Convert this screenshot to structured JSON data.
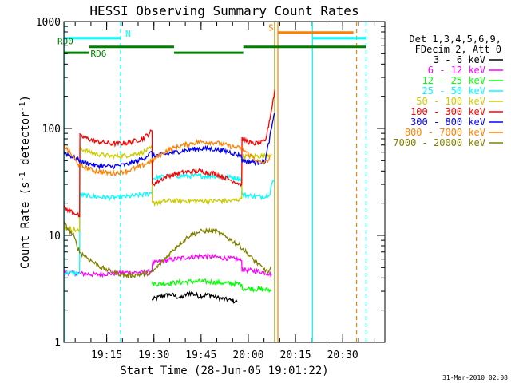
{
  "chart_data": {
    "type": "line",
    "title": "HESSI Observing Summary Count Rates",
    "xlabel": "Start Time (28-Jun-05 19:01:22)",
    "ylabel_main": "Count Rate (s",
    "ylabel_sup1": "-1",
    "ylabel_mid": " detector",
    "ylabel_sup2": "-1",
    "ylabel_end": ")",
    "y_scale": "log",
    "ylim": [
      1,
      1000
    ],
    "xlim_minutes": [
      0,
      102
    ],
    "x_ticks": [
      {
        "m": 13.6,
        "label": "19:15"
      },
      {
        "m": 28.6,
        "label": "19:30"
      },
      {
        "m": 43.6,
        "label": "19:45"
      },
      {
        "m": 58.6,
        "label": "20:00"
      },
      {
        "m": 73.6,
        "label": "20:15"
      },
      {
        "m": 88.6,
        "label": "20:30"
      }
    ],
    "y_ticks": [
      {
        "v": 1,
        "label": "1"
      },
      {
        "v": 10,
        "label": "10"
      },
      {
        "v": 100,
        "label": "100"
      },
      {
        "v": 1000,
        "label": "1000"
      }
    ],
    "legend_header": [
      "Det 1,3,4,5,6,9,",
      "FDecim 2, Att 0"
    ],
    "series": [
      {
        "name": "3 - 6 keV",
        "color": "#000000",
        "x": [
          28,
          31,
          34,
          37,
          40,
          43,
          46,
          49,
          52,
          55
        ],
        "y": [
          2.5,
          2.7,
          2.8,
          2.6,
          2.9,
          2.7,
          2.8,
          2.6,
          2.5,
          2.4
        ]
      },
      {
        "name": "6 - 12 keV",
        "color": "#ff00ff",
        "x": [
          0,
          5,
          10,
          15,
          20,
          25,
          28,
          28.1,
          35,
          40,
          45,
          50,
          55,
          56.5,
          56.6,
          62,
          65,
          66
        ],
        "y": [
          4.5,
          4.4,
          4.3,
          4.4,
          4.5,
          4.5,
          4.6,
          5.5,
          6.0,
          6.3,
          6.4,
          6.2,
          6.0,
          5.8,
          4.8,
          4.6,
          4.4,
          4.3
        ]
      },
      {
        "name": "12 - 25 keV",
        "color": "#00ff00",
        "x": [
          28,
          35,
          40,
          45,
          50,
          56.5,
          56.6,
          65,
          66
        ],
        "y": [
          3.5,
          3.6,
          3.7,
          3.7,
          3.6,
          3.5,
          3.2,
          3.1,
          3.0
        ]
      },
      {
        "name": "25 - 50 keV",
        "color": "#00ffff",
        "x": [
          0,
          5,
          5.1,
          10,
          15,
          20,
          25,
          28,
          28.1,
          33,
          38,
          43,
          48,
          53,
          56.5,
          56.6,
          62,
          64,
          65.5,
          66,
          67
        ],
        "y": [
          4.5,
          4.4,
          24,
          23,
          22.5,
          23,
          24,
          25,
          34,
          36,
          36,
          36,
          36,
          35,
          34,
          24,
          23,
          23,
          25,
          30,
          33
        ]
      },
      {
        "name": "50 - 100 keV",
        "color": "#cccc00",
        "x": [
          0,
          5,
          5.1,
          10,
          15,
          20,
          25,
          28,
          28.1,
          33,
          38,
          43,
          48,
          53,
          56.5,
          56.6,
          62,
          64,
          66
        ],
        "y": [
          12,
          11,
          65,
          58,
          55,
          56,
          60,
          66,
          20,
          21,
          21,
          21,
          21,
          21,
          22,
          55,
          55,
          56,
          58
        ]
      },
      {
        "name": "100 - 300 keV",
        "color": "#ff0000",
        "x": [
          0,
          4,
          5,
          5.1,
          10,
          15,
          20,
          25,
          28,
          28.1,
          33,
          38,
          43,
          48,
          53,
          56.5,
          56.6,
          60,
          64,
          66,
          67
        ],
        "y": [
          18,
          16,
          15,
          85,
          76,
          72,
          73,
          80,
          95,
          30,
          36,
          39,
          40,
          38,
          33,
          30,
          80,
          72,
          75,
          150,
          230
        ]
      },
      {
        "name": "300 - 800 keV",
        "color": "#0000ff",
        "x": [
          0,
          5,
          10,
          15,
          20,
          25,
          28,
          28.1,
          33,
          38,
          43,
          48,
          53,
          56.5,
          56.6,
          62,
          64,
          66,
          67
        ],
        "y": [
          60,
          50,
          45,
          44,
          46,
          52,
          60,
          55,
          58,
          62,
          65,
          64,
          60,
          55,
          50,
          48,
          50,
          100,
          140
        ]
      },
      {
        "name": "800 - 7000 keV",
        "color": "#ff8000",
        "x": [
          0,
          5,
          10,
          15,
          20,
          25,
          28,
          33,
          38,
          43,
          48,
          53,
          56.5,
          62,
          64,
          66
        ],
        "y": [
          70,
          45,
          40,
          38,
          40,
          45,
          50,
          63,
          70,
          75,
          74,
          68,
          65,
          48,
          48,
          55
        ]
      },
      {
        "name": "7000 - 20000 keV",
        "color": "#808000",
        "x": [
          0,
          3,
          5,
          8,
          12,
          16,
          20,
          24,
          28,
          32,
          36,
          40,
          44,
          48,
          52,
          56,
          60,
          63,
          65,
          66
        ],
        "y": [
          13,
          10,
          7,
          6,
          5,
          4.5,
          4.2,
          4.3,
          4.5,
          6,
          8,
          10,
          11,
          11,
          9.5,
          8,
          6,
          5,
          4.5,
          5
        ]
      }
    ],
    "state_bars": [
      {
        "label": "N",
        "color": "#00ffff",
        "y": 700,
        "x_ranges": [
          [
            0,
            18
          ]
        ]
      },
      {
        "label": "RD0",
        "color": "#008000",
        "y": 580,
        "x_ranges": [
          [
            8,
            35
          ],
          [
            57,
            96
          ]
        ]
      },
      {
        "label": "RD6",
        "color": "#008000",
        "y": 510,
        "x_ranges": [
          [
            0,
            8
          ],
          [
            35,
            57
          ]
        ]
      },
      {
        "label": "S",
        "color": "#ff8000",
        "y": 790,
        "x_ranges": [
          [
            68,
            92
          ]
        ]
      },
      {
        "label": "",
        "color": "#00ffff",
        "y": 700,
        "x_ranges": [
          [
            79,
            96
          ]
        ]
      }
    ],
    "vlines": [
      {
        "m": 0.1,
        "color": "#00ffff",
        "dash": false
      },
      {
        "m": 18,
        "color": "#00ffff",
        "dash": true
      },
      {
        "m": 67,
        "color": "#808000",
        "dash": false
      },
      {
        "m": 68,
        "color": "#ff8000",
        "dash": false
      },
      {
        "m": 79,
        "color": "#00ffff",
        "dash": false
      },
      {
        "m": 93,
        "color": "#ff8000",
        "dash": true
      },
      {
        "m": 96,
        "color": "#00ffff",
        "dash": true
      }
    ],
    "stamp": "31-Mar-2010 02:08"
  }
}
